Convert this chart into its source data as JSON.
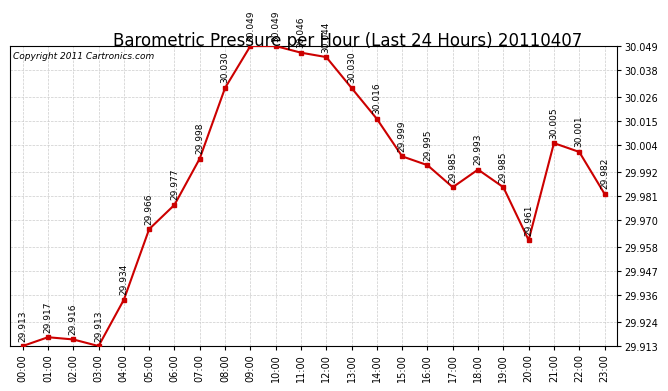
{
  "title": "Barometric Pressure per Hour (Last 24 Hours) 20110407",
  "copyright": "Copyright 2011 Cartronics.com",
  "hours": [
    "00:00",
    "01:00",
    "02:00",
    "03:00",
    "04:00",
    "05:00",
    "06:00",
    "07:00",
    "08:00",
    "09:00",
    "10:00",
    "11:00",
    "12:00",
    "13:00",
    "14:00",
    "15:00",
    "16:00",
    "17:00",
    "18:00",
    "19:00",
    "20:00",
    "21:00",
    "22:00",
    "23:00"
  ],
  "values": [
    29.913,
    29.917,
    29.916,
    29.913,
    29.934,
    29.966,
    29.977,
    29.998,
    30.03,
    30.049,
    30.049,
    30.046,
    30.044,
    30.03,
    30.016,
    29.999,
    29.995,
    29.985,
    29.993,
    29.985,
    29.961,
    30.005,
    30.001,
    29.982
  ],
  "ylim": [
    29.913,
    30.049
  ],
  "yticks": [
    29.913,
    29.924,
    29.936,
    29.947,
    29.958,
    29.97,
    29.981,
    29.992,
    30.004,
    30.015,
    30.026,
    30.038,
    30.049
  ],
  "line_color": "#cc0000",
  "marker_color": "#cc0000",
  "bg_color": "#ffffff",
  "grid_color": "#cccccc",
  "title_fontsize": 12,
  "label_fontsize": 7,
  "annot_fontsize": 6.5
}
